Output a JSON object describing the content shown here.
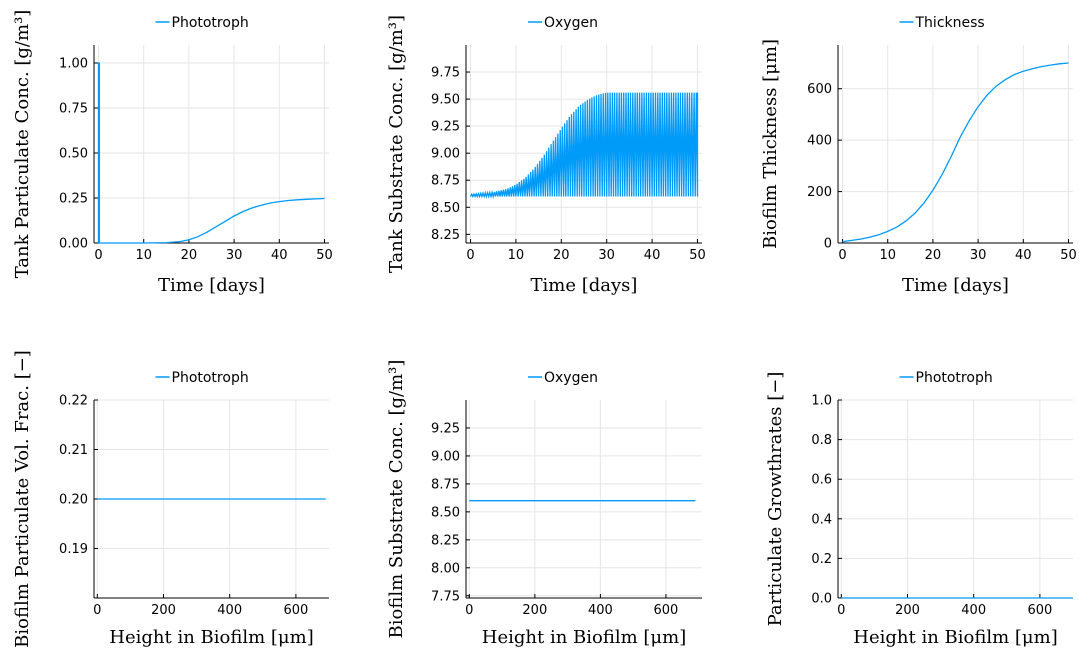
{
  "series_color": "#009AF9",
  "chart_data": [
    {
      "type": "line",
      "legend": "Phototroph",
      "xlabel": "Time [days]",
      "ylabel": "Tank Particulate Conc. [g/m³]",
      "xlim": [
        -1,
        51
      ],
      "ylim": [
        0,
        1.1
      ],
      "xticks": [
        0,
        10,
        20,
        30,
        40,
        50
      ],
      "yticks": [
        0,
        0.25,
        0.5,
        0.75,
        1.0
      ],
      "ytick_labels": [
        "0.00",
        "0.25",
        "0.50",
        "0.75",
        "1.00"
      ],
      "series": [
        {
          "x": [
            0,
            0,
            0.2,
            0.2,
            5,
            10,
            15,
            18,
            20,
            22,
            24,
            26,
            28,
            30,
            32,
            34,
            36,
            38,
            40,
            42,
            44,
            46,
            48,
            50
          ],
          "y": [
            0,
            1.0,
            1.0,
            0.0,
            0.0,
            0.0,
            0.002,
            0.008,
            0.018,
            0.035,
            0.06,
            0.09,
            0.12,
            0.15,
            0.175,
            0.195,
            0.21,
            0.222,
            0.23,
            0.236,
            0.24,
            0.243,
            0.245,
            0.247
          ]
        }
      ]
    },
    {
      "type": "line",
      "legend": "Oxygen",
      "xlabel": "Time [days]",
      "ylabel": "Tank Substrate Conc. [g/m³]",
      "xlim": [
        -1,
        51
      ],
      "ylim": [
        8.17,
        10.0
      ],
      "xticks": [
        0,
        10,
        20,
        30,
        40,
        50
      ],
      "yticks": [
        8.25,
        8.5,
        8.75,
        9.0,
        9.25,
        9.5,
        9.75
      ],
      "ytick_labels": [
        "8.25",
        "8.50",
        "8.75",
        "9.00",
        "9.25",
        "9.50",
        "9.75"
      ],
      "oscillation": {
        "lower": 8.6,
        "period_days": 0.5
      },
      "series": [
        {
          "x": [
            0,
            5,
            8,
            10,
            12,
            14,
            16,
            18,
            20,
            22,
            24,
            26,
            28,
            30,
            35,
            40,
            45,
            50
          ],
          "y": [
            8.62,
            8.64,
            8.67,
            8.71,
            8.77,
            8.86,
            8.97,
            9.1,
            9.23,
            9.35,
            9.44,
            9.5,
            9.54,
            9.56,
            9.56,
            9.56,
            9.56,
            9.56
          ]
        }
      ]
    },
    {
      "type": "line",
      "legend": "Thickness",
      "xlabel": "Time [days]",
      "ylabel": "Biofilm Thickness [μm]",
      "xlim": [
        -1,
        51
      ],
      "ylim": [
        0,
        770
      ],
      "xticks": [
        0,
        10,
        20,
        30,
        40,
        50
      ],
      "yticks": [
        0,
        200,
        400,
        600
      ],
      "ytick_labels": [
        "0",
        "200",
        "400",
        "600"
      ],
      "series": [
        {
          "x": [
            0,
            2,
            4,
            6,
            8,
            10,
            12,
            14,
            16,
            18,
            20,
            22,
            24,
            26,
            28,
            30,
            32,
            34,
            36,
            38,
            40,
            42,
            44,
            46,
            48,
            50
          ],
          "y": [
            5,
            10,
            15,
            22,
            32,
            45,
            62,
            85,
            115,
            155,
            205,
            265,
            335,
            410,
            475,
            530,
            575,
            610,
            635,
            655,
            668,
            678,
            686,
            692,
            697,
            700
          ]
        }
      ]
    },
    {
      "type": "line",
      "legend": "Phototroph",
      "xlabel": "Height in Biofilm [μm]",
      "ylabel": "Biofilm Particulate Vol. Frac. [−]",
      "xlim": [
        -10,
        700
      ],
      "ylim": [
        0.18,
        0.22
      ],
      "xticks": [
        0,
        200,
        400,
        600
      ],
      "yticks": [
        0.19,
        0.2,
        0.21,
        0.22
      ],
      "ytick_labels": [
        "0.19",
        "0.20",
        "0.21",
        "0.22"
      ],
      "series": [
        {
          "x": [
            0,
            690
          ],
          "y": [
            0.2,
            0.2
          ]
        }
      ]
    },
    {
      "type": "line",
      "legend": "Oxygen",
      "xlabel": "Height in Biofilm [μm]",
      "ylabel": "Biofilm Substrate Conc. [g/m³]",
      "xlim": [
        -10,
        710
      ],
      "ylim": [
        7.73,
        9.5
      ],
      "xticks": [
        0,
        200,
        400,
        600
      ],
      "yticks": [
        7.75,
        8.0,
        8.25,
        8.5,
        8.75,
        9.0,
        9.25
      ],
      "ytick_labels": [
        "7.75",
        "8.00",
        "8.25",
        "8.50",
        "8.75",
        "9.00",
        "9.25"
      ],
      "series": [
        {
          "x": [
            0,
            690
          ],
          "y": [
            8.6,
            8.6
          ]
        }
      ]
    },
    {
      "type": "line",
      "legend": "Phototroph",
      "xlabel": "Height in Biofilm [μm]",
      "ylabel": "Particulate Growthrates [−]",
      "xlim": [
        -10,
        700
      ],
      "ylim": [
        0,
        1.0
      ],
      "xticks": [
        0,
        200,
        400,
        600
      ],
      "yticks": [
        0,
        0.2,
        0.4,
        0.6,
        0.8,
        1.0
      ],
      "ytick_labels": [
        "0.0",
        "0.2",
        "0.4",
        "0.6",
        "0.8",
        "1.0"
      ],
      "series": [
        {
          "x": [
            0,
            700
          ],
          "y": [
            0,
            0
          ]
        }
      ]
    }
  ]
}
